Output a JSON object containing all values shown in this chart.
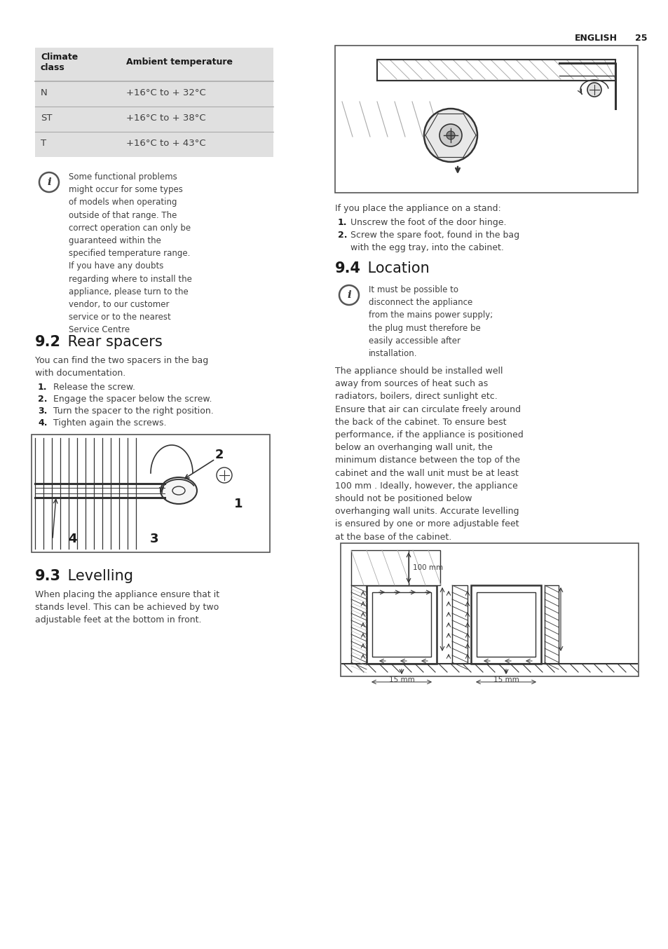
{
  "page_bg": "#ffffff",
  "table_bg": "#e0e0e0",
  "table_rows": [
    [
      "N",
      "+16°C to + 32°C"
    ],
    [
      "ST",
      "+16°C to + 38°C"
    ],
    [
      "T",
      "+16°C to + 43°C"
    ]
  ],
  "info_note1": "Some functional problems\nmight occur for some types\nof models when operating\noutside of that range. The\ncorrect operation can only be\nguaranteed within the\nspecified temperature range.\nIf you have any doubts\nregarding where to install the\nappliance, please turn to the\nvendor, to our customer\nservice or to the nearest\nService Centre",
  "section_92_intro": "You can find the two spacers in the bag\nwith documentation.",
  "section_92_steps": [
    "Release the screw.",
    "Engage the spacer below the screw.",
    "Turn the spacer to the right position.",
    "Tighten again the screws."
  ],
  "section_93_text": "When placing the appliance ensure that it\nstands level. This can be achieved by two\nadjustable feet at the bottom in front.",
  "right_stand_text": "If you place the appliance on a stand:",
  "right_stand_step1": "Unscrew the foot of the door hinge.",
  "right_stand_step2": "Screw the spare foot, found in the bag\nwith the egg tray, into the cabinet.",
  "info_note2": "It must be possible to\ndisconnect the appliance\nfrom the mains power supply;\nthe plug must therefore be\neasily accessible after\ninstallation.",
  "section_94_text": "The appliance should be installed well\naway from sources of heat such as\nradiators, boilers, direct sunlight etc.\nEnsure that air can circulate freely around\nthe back of the cabinet. To ensure best\nperformance, if the appliance is positioned\nbelow an overhanging wall unit, the\nminimum distance between the top of the\ncabinet and the wall unit must be at least\n100 mm . Ideally, however, the appliance\nshould not be positioned below\noverhanging wall units. Accurate levelling\nis ensured by one or more adjustable feet\nat the base of the cabinet.",
  "text_color": "#404040",
  "dark_color": "#1a1a1a",
  "line_color": "#333333",
  "div_color": "#aaaaaa",
  "hatch_color": "#888888"
}
